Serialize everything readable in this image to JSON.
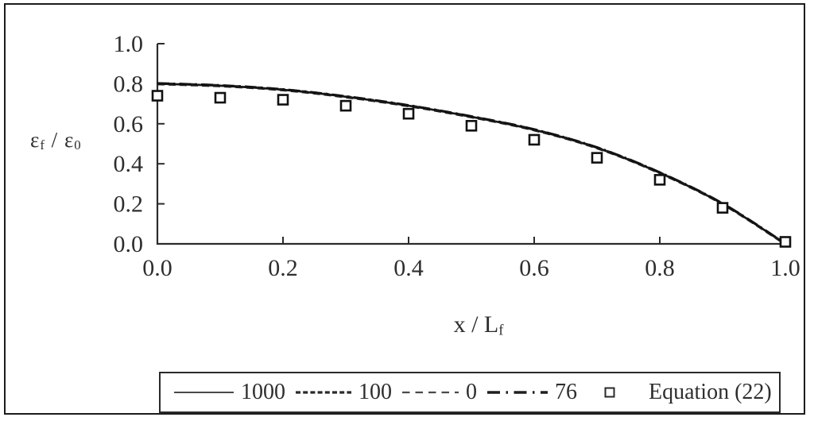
{
  "figure": {
    "background": "#ffffff",
    "frame_color": "#1c1c1c",
    "ink_color": "#1a1a1a",
    "text_color": "#2e2e2e"
  },
  "axes": {
    "y_label": {
      "base1": "ε",
      "sub1": "f",
      "sep": " / ",
      "base2": "ε",
      "sub2": "0"
    },
    "x_label": {
      "base": "x / L",
      "sub": "f"
    }
  },
  "chart_data": {
    "type": "line",
    "x": [
      0.0,
      0.1,
      0.2,
      0.3,
      0.4,
      0.5,
      0.6,
      0.7,
      0.8,
      0.9,
      1.0
    ],
    "series": [
      {
        "name": "1000",
        "style": "solid",
        "values": [
          0.8,
          0.79,
          0.77,
          0.735,
          0.69,
          0.635,
          0.57,
          0.48,
          0.355,
          0.2,
          0.0
        ]
      },
      {
        "name": "100",
        "style": "dashed-dense",
        "values": [
          0.8,
          0.79,
          0.77,
          0.735,
          0.69,
          0.635,
          0.57,
          0.48,
          0.355,
          0.2,
          0.0
        ]
      },
      {
        "name": "0",
        "style": "dashed-sparse",
        "values": [
          0.8,
          0.79,
          0.77,
          0.735,
          0.69,
          0.635,
          0.57,
          0.48,
          0.355,
          0.2,
          0.0
        ]
      },
      {
        "name": "76",
        "style": "dash-dot",
        "values": [
          0.8,
          0.79,
          0.77,
          0.735,
          0.69,
          0.635,
          0.57,
          0.48,
          0.355,
          0.2,
          0.0
        ]
      },
      {
        "name": "Equation (22)",
        "style": "square-markers",
        "values": [
          0.74,
          0.73,
          0.72,
          0.69,
          0.65,
          0.59,
          0.52,
          0.43,
          0.32,
          0.18,
          0.01
        ]
      }
    ],
    "xlim": [
      0.0,
      1.0
    ],
    "ylim": [
      0.0,
      1.0
    ],
    "x_ticks": [
      "0.0",
      "0.2",
      "0.4",
      "0.6",
      "0.8",
      "1.0"
    ],
    "y_ticks": [
      "0.0",
      "0.2",
      "0.4",
      "0.6",
      "0.8",
      "1.0"
    ],
    "grid": false,
    "legend_position": "bottom",
    "title": ""
  },
  "legend": {
    "items": [
      {
        "label": "1000",
        "swatch": "solid-line"
      },
      {
        "label": "100",
        "swatch": "dense-dashed-line"
      },
      {
        "label": "0",
        "swatch": "sparse-dashed-line"
      },
      {
        "label": "76",
        "swatch": "dash-dot-line"
      },
      {
        "label": "Equation (22)",
        "swatch": "square-marker"
      }
    ]
  }
}
